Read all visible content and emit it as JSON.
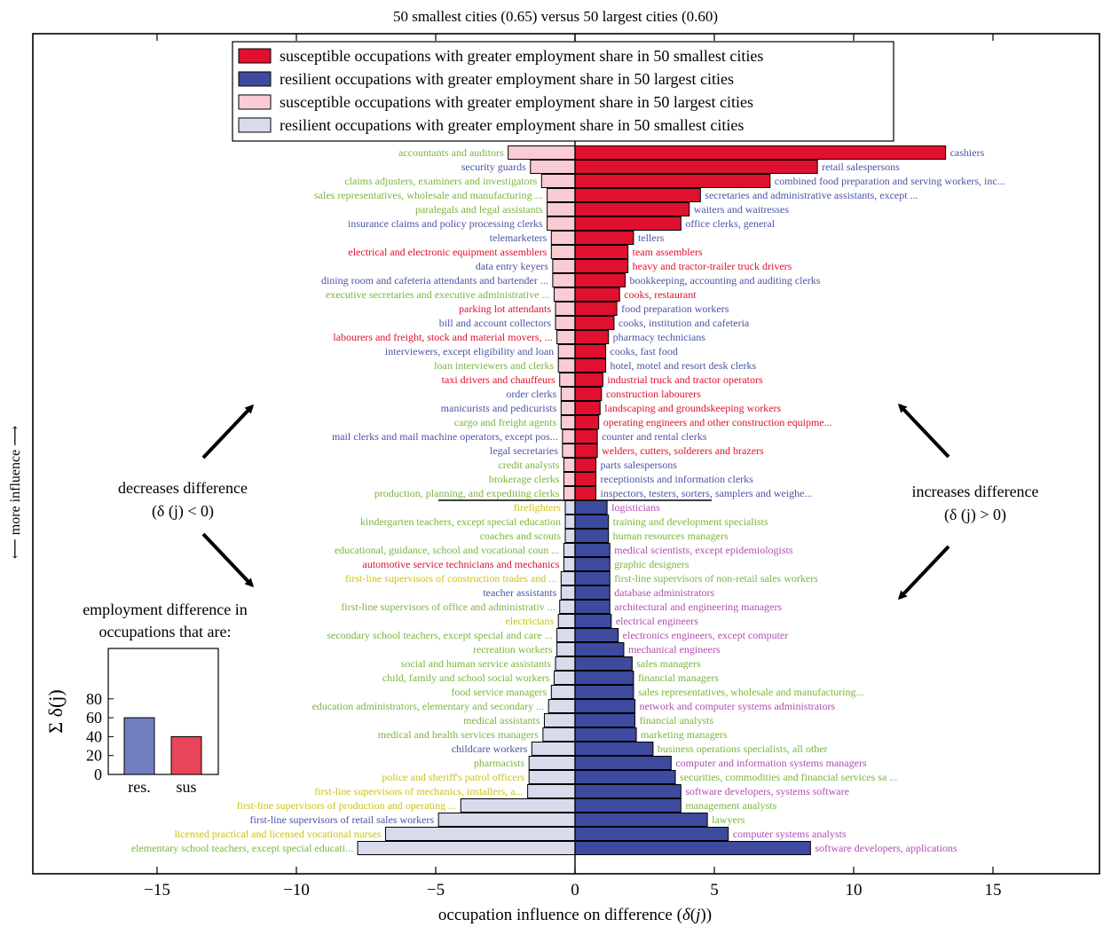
{
  "header": {
    "title": "50 smallest cities (0.65) versus 50 largest cities (0.60)",
    "xlabel_prefix": "occupation influence on difference (",
    "xlabel_symbol": "δ",
    "xlabel_j": "j",
    "xlabel_suffix": "))",
    "ylabel": "⟵ more influence ⟶"
  },
  "annotations": {
    "left_line1": "decreases difference",
    "left_line2": "(δ (j) < 0)",
    "right_line1": "increases difference",
    "right_line2": "(δ (j) > 0)"
  },
  "colors": {
    "sus_pos": "#e0102f",
    "res_pos": "#3e4a9e",
    "sus_neg": "#f9cbd2",
    "res_neg": "#d7dbeb",
    "label_green": "#7ab53e",
    "label_blue": "#4a55a5",
    "label_red": "#e0102f",
    "label_purple": "#b24db2",
    "label_yellow": "#c9c414",
    "inset_res": "#7080c0",
    "inset_sus": "#e8445a"
  },
  "legend": [
    {
      "name": "susceptible occupations with greater employment share in 50 smallest cities",
      "color": "sus_pos"
    },
    {
      "name": "resilient occupations with greater employment share in 50 largest cities",
      "color": "res_pos"
    },
    {
      "name": "susceptible occupations with greater employment share in 50 largest cities",
      "color": "sus_neg"
    },
    {
      "name": "resilient occupations with greater employment share in 50 smallest cities",
      "color": "res_neg"
    }
  ],
  "chart_data": [
    {
      "type": "bar",
      "orientation": "horizontal",
      "xlabel": "occupation influence on difference (δ(j))",
      "xlim": [
        -19.5,
        19
      ],
      "xticks": [
        -15,
        -10,
        -5,
        0,
        5,
        10,
        15
      ],
      "rows_top_half": [
        {
          "neg": {
            "value": -2.4,
            "label": "accountants and auditors",
            "lc": "label_green"
          },
          "pos": {
            "value": 13.3,
            "label": "cashiers",
            "lc": "label_blue"
          }
        },
        {
          "neg": {
            "value": -1.6,
            "label": "security guards",
            "lc": "label_blue"
          },
          "pos": {
            "value": 8.7,
            "label": "retail salespersons",
            "lc": "label_blue"
          }
        },
        {
          "neg": {
            "value": -1.2,
            "label": "claims adjusters, examiners and investigators",
            "lc": "label_green"
          },
          "pos": {
            "value": 7.0,
            "label": "combined food preparation and serving workers, inc...",
            "lc": "label_blue"
          }
        },
        {
          "neg": {
            "value": -1.0,
            "label": "sales representatives, wholesale and manufacturing ...",
            "lc": "label_green"
          },
          "pos": {
            "value": 4.5,
            "label": "secretaries and administrative assistants, except ...",
            "lc": "label_blue"
          }
        },
        {
          "neg": {
            "value": -1.0,
            "label": "paralegals and legal assistants",
            "lc": "label_green"
          },
          "pos": {
            "value": 4.1,
            "label": "waiters and waitresses",
            "lc": "label_blue"
          }
        },
        {
          "neg": {
            "value": -1.0,
            "label": "insurance claims and policy processing clerks",
            "lc": "label_blue"
          },
          "pos": {
            "value": 3.8,
            "label": "office clerks, general",
            "lc": "label_blue"
          }
        },
        {
          "neg": {
            "value": -0.85,
            "label": "telemarketers",
            "lc": "label_blue"
          },
          "pos": {
            "value": 2.1,
            "label": "tellers",
            "lc": "label_blue"
          }
        },
        {
          "neg": {
            "value": -0.85,
            "label": "electrical and electronic equipment assemblers",
            "lc": "label_red"
          },
          "pos": {
            "value": 1.9,
            "label": "team assemblers",
            "lc": "label_red"
          }
        },
        {
          "neg": {
            "value": -0.8,
            "label": "data entry keyers",
            "lc": "label_blue"
          },
          "pos": {
            "value": 1.9,
            "label": "heavy and tractor-trailer truck drivers",
            "lc": "label_red"
          }
        },
        {
          "neg": {
            "value": -0.8,
            "label": "dining room and cafeteria attendants and bartender ...",
            "lc": "label_blue"
          },
          "pos": {
            "value": 1.8,
            "label": "bookkeeping, accounting and auditing clerks",
            "lc": "label_blue"
          }
        },
        {
          "neg": {
            "value": -0.75,
            "label": "executive secretaries and executive administrative ...",
            "lc": "label_green"
          },
          "pos": {
            "value": 1.6,
            "label": "cooks, restaurant",
            "lc": "label_red"
          }
        },
        {
          "neg": {
            "value": -0.7,
            "label": "parking lot attendants",
            "lc": "label_red"
          },
          "pos": {
            "value": 1.5,
            "label": "food preparation workers",
            "lc": "label_blue"
          }
        },
        {
          "neg": {
            "value": -0.7,
            "label": "bill and account collectors",
            "lc": "label_blue"
          },
          "pos": {
            "value": 1.4,
            "label": "cooks, institution and cafeteria",
            "lc": "label_blue"
          }
        },
        {
          "neg": {
            "value": -0.65,
            "label": "labourers and freight, stock and material movers, ...",
            "lc": "label_red"
          },
          "pos": {
            "value": 1.2,
            "label": "pharmacy technicians",
            "lc": "label_blue"
          }
        },
        {
          "neg": {
            "value": -0.6,
            "label": "interviewers, except eligibility and loan",
            "lc": "label_blue"
          },
          "pos": {
            "value": 1.1,
            "label": "cooks, fast food",
            "lc": "label_blue"
          }
        },
        {
          "neg": {
            "value": -0.6,
            "label": "loan interviewers and clerks",
            "lc": "label_green"
          },
          "pos": {
            "value": 1.1,
            "label": "hotel, motel and resort desk clerks",
            "lc": "label_blue"
          }
        },
        {
          "neg": {
            "value": -0.55,
            "label": "taxi drivers and chauffeurs",
            "lc": "label_red"
          },
          "pos": {
            "value": 1.0,
            "label": "industrial truck and tractor operators",
            "lc": "label_red"
          }
        },
        {
          "neg": {
            "value": -0.5,
            "label": "order clerks",
            "lc": "label_blue"
          },
          "pos": {
            "value": 0.95,
            "label": "construction labourers",
            "lc": "label_red"
          }
        },
        {
          "neg": {
            "value": -0.5,
            "label": "manicurists and pedicurists",
            "lc": "label_blue"
          },
          "pos": {
            "value": 0.9,
            "label": "landscaping and groundskeeping workers",
            "lc": "label_red"
          }
        },
        {
          "neg": {
            "value": -0.5,
            "label": "cargo and freight agents",
            "lc": "label_green"
          },
          "pos": {
            "value": 0.85,
            "label": "operating engineers and other construction equipme...",
            "lc": "label_red"
          }
        },
        {
          "neg": {
            "value": -0.45,
            "label": "mail clerks and mail machine operators, except pos...",
            "lc": "label_blue"
          },
          "pos": {
            "value": 0.8,
            "label": "counter and rental clerks",
            "lc": "label_blue"
          }
        },
        {
          "neg": {
            "value": -0.45,
            "label": "legal secretaries",
            "lc": "label_blue"
          },
          "pos": {
            "value": 0.8,
            "label": "welders, cutters, solderers and brazers",
            "lc": "label_red"
          }
        },
        {
          "neg": {
            "value": -0.4,
            "label": "credit analysts",
            "lc": "label_green"
          },
          "pos": {
            "value": 0.75,
            "label": "parts salespersons",
            "lc": "label_blue"
          }
        },
        {
          "neg": {
            "value": -0.4,
            "label": "brokerage clerks",
            "lc": "label_green"
          },
          "pos": {
            "value": 0.75,
            "label": "receptionists and information clerks",
            "lc": "label_blue"
          }
        },
        {
          "neg": {
            "value": -0.4,
            "label": "production, planning, and expediting clerks",
            "lc": "label_green"
          },
          "pos": {
            "value": 0.75,
            "label": "inspectors, testers, sorters, samplers and weighe...",
            "lc": "label_blue"
          }
        }
      ],
      "rows_bottom_half": [
        {
          "neg": {
            "value": -0.35,
            "label": "firefighters",
            "lc": "label_yellow"
          },
          "pos": {
            "value": 1.15,
            "label": "logisticians",
            "lc": "label_purple"
          }
        },
        {
          "neg": {
            "value": -0.35,
            "label": "kindergarten teachers, except special education",
            "lc": "label_green"
          },
          "pos": {
            "value": 1.2,
            "label": "training and development specialists",
            "lc": "label_green"
          }
        },
        {
          "neg": {
            "value": -0.35,
            "label": "coaches and scouts",
            "lc": "label_green"
          },
          "pos": {
            "value": 1.2,
            "label": "human resources managers",
            "lc": "label_green"
          }
        },
        {
          "neg": {
            "value": -0.4,
            "label": "educational, guidance, school and vocational coun ...",
            "lc": "label_green"
          },
          "pos": {
            "value": 1.25,
            "label": "medical scientists, except epidemiologists",
            "lc": "label_purple"
          }
        },
        {
          "neg": {
            "value": -0.4,
            "label": "automotive service technicians and mechanics",
            "lc": "label_red"
          },
          "pos": {
            "value": 1.25,
            "label": "graphic designers",
            "lc": "label_green"
          }
        },
        {
          "neg": {
            "value": -0.5,
            "label": "first-line supervisors of construction trades and ...",
            "lc": "label_yellow"
          },
          "pos": {
            "value": 1.25,
            "label": "first-line supervisors of non-retail sales workers",
            "lc": "label_green"
          }
        },
        {
          "neg": {
            "value": -0.5,
            "label": "teacher assistants",
            "lc": "label_blue"
          },
          "pos": {
            "value": 1.25,
            "label": "database administrators",
            "lc": "label_purple"
          }
        },
        {
          "neg": {
            "value": -0.55,
            "label": "first-line supervisors of office and administrativ ...",
            "lc": "label_green"
          },
          "pos": {
            "value": 1.25,
            "label": "architectural and engineering managers",
            "lc": "label_purple"
          }
        },
        {
          "neg": {
            "value": -0.6,
            "label": "electricians",
            "lc": "label_yellow"
          },
          "pos": {
            "value": 1.3,
            "label": "electrical engineers",
            "lc": "label_purple"
          }
        },
        {
          "neg": {
            "value": -0.65,
            "label": "secondary school teachers, except special and care ...",
            "lc": "label_green"
          },
          "pos": {
            "value": 1.55,
            "label": "electronics engineers, except computer",
            "lc": "label_purple"
          }
        },
        {
          "neg": {
            "value": -0.65,
            "label": "recreation workers",
            "lc": "label_green"
          },
          "pos": {
            "value": 1.75,
            "label": "mechanical engineers",
            "lc": "label_purple"
          }
        },
        {
          "neg": {
            "value": -0.7,
            "label": "social and human service assistants",
            "lc": "label_green"
          },
          "pos": {
            "value": 2.05,
            "label": "sales managers",
            "lc": "label_green"
          }
        },
        {
          "neg": {
            "value": -0.75,
            "label": "child, family and school social workers",
            "lc": "label_green"
          },
          "pos": {
            "value": 2.1,
            "label": "financial managers",
            "lc": "label_green"
          }
        },
        {
          "neg": {
            "value": -0.85,
            "label": "food service managers",
            "lc": "label_green"
          },
          "pos": {
            "value": 2.1,
            "label": "sales representatives, wholesale and manufacturing...",
            "lc": "label_green"
          }
        },
        {
          "neg": {
            "value": -0.95,
            "label": "education administrators, elementary and secondary ...",
            "lc": "label_green"
          },
          "pos": {
            "value": 2.15,
            "label": "network and computer systems administrators",
            "lc": "label_purple"
          }
        },
        {
          "neg": {
            "value": -1.1,
            "label": "medical assistants",
            "lc": "label_green"
          },
          "pos": {
            "value": 2.15,
            "label": "financial analysts",
            "lc": "label_green"
          }
        },
        {
          "neg": {
            "value": -1.15,
            "label": "medical and health services managers",
            "lc": "label_green"
          },
          "pos": {
            "value": 2.2,
            "label": "marketing managers",
            "lc": "label_green"
          }
        },
        {
          "neg": {
            "value": -1.55,
            "label": "childcare workers",
            "lc": "label_blue"
          },
          "pos": {
            "value": 2.8,
            "label": "business operations specialists, all other",
            "lc": "label_green"
          }
        },
        {
          "neg": {
            "value": -1.65,
            "label": "pharmacists",
            "lc": "label_green"
          },
          "pos": {
            "value": 3.45,
            "label": "computer and information systems managers",
            "lc": "label_purple"
          }
        },
        {
          "neg": {
            "value": -1.65,
            "label": "police and sheriff's patrol officers",
            "lc": "label_yellow"
          },
          "pos": {
            "value": 3.6,
            "label": "securities, commodities and financial services sa ...",
            "lc": "label_green"
          }
        },
        {
          "neg": {
            "value": -1.7,
            "label": "first-line supervisors of mechanics, installers, a...",
            "lc": "label_yellow"
          },
          "pos": {
            "value": 3.8,
            "label": "software developers, systems software",
            "lc": "label_purple"
          }
        },
        {
          "neg": {
            "value": -4.1,
            "label": "first-line supervisors of production and operating ...",
            "lc": "label_yellow"
          },
          "pos": {
            "value": 3.8,
            "label": "management analysts",
            "lc": "label_green"
          }
        },
        {
          "neg": {
            "value": -4.9,
            "label": "first-line supervisors of retail sales workers",
            "lc": "label_blue"
          },
          "pos": {
            "value": 4.75,
            "label": "lawyers",
            "lc": "label_green"
          }
        },
        {
          "neg": {
            "value": -6.8,
            "label": "licensed practical and licensed vocational nurses",
            "lc": "label_yellow"
          },
          "pos": {
            "value": 5.5,
            "label": "computer systems analysts",
            "lc": "label_purple"
          }
        },
        {
          "neg": {
            "value": -7.8,
            "label": "elementary school teachers, except special educati...",
            "lc": "label_green"
          },
          "pos": {
            "value": 8.45,
            "label": "software developers, applications",
            "lc": "label_purple"
          }
        }
      ]
    },
    {
      "type": "bar",
      "title": "employment difference in occupations that are:",
      "ylabel": "Σ δ(j)",
      "categories": [
        "res.",
        "sus"
      ],
      "values": [
        60,
        40
      ],
      "ylim": [
        0,
        95
      ],
      "yticks": [
        0,
        20,
        40,
        60,
        80
      ]
    }
  ]
}
